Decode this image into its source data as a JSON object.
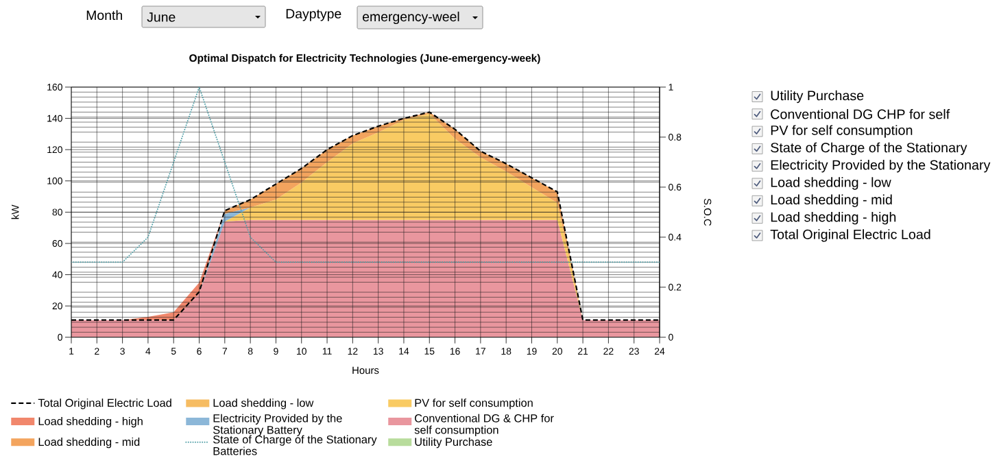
{
  "chart_data": {
    "type": "area",
    "title": "Optimal Dispatch for Electricity Technologies (June-emergency-week)",
    "xlabel": "Hours",
    "ylabel": "kW",
    "y2label": "S.O.C",
    "x": [
      1,
      2,
      3,
      4,
      5,
      6,
      7,
      8,
      9,
      10,
      11,
      12,
      13,
      14,
      15,
      16,
      17,
      18,
      19,
      20,
      21,
      22,
      23,
      24
    ],
    "xlim": [
      1,
      24
    ],
    "xticks": [
      1,
      2,
      3,
      4,
      5,
      6,
      7,
      8,
      9,
      10,
      11,
      12,
      13,
      14,
      15,
      16,
      17,
      18,
      19,
      20,
      21,
      22,
      23,
      24
    ],
    "ylim": [
      0,
      160
    ],
    "yticks": [
      0,
      20,
      40,
      60,
      80,
      100,
      120,
      140,
      160
    ],
    "y2lim": [
      0,
      1
    ],
    "y2ticks": [
      0,
      0.2,
      0.4,
      0.6,
      0.8,
      1
    ],
    "stacked": true,
    "grid": true,
    "legend": "bottom",
    "series": [
      {
        "name": "Utility Purchase",
        "color": "#b8dc9c",
        "values": [
          null,
          null,
          null,
          null,
          null,
          null,
          null,
          null,
          null,
          null,
          null,
          null,
          null,
          null,
          null,
          null,
          null,
          null,
          null,
          null,
          null,
          null,
          null,
          null
        ]
      },
      {
        "name": "Conventional DG & CHP for self consumption",
        "color": "#e9969e",
        "values": [
          11,
          11,
          11,
          11,
          11,
          28,
          74,
          75,
          75,
          75,
          75,
          75,
          75,
          75,
          75,
          75,
          75,
          75,
          75,
          75,
          11,
          11,
          11,
          11
        ]
      },
      {
        "name": "PV for self consumption",
        "color": "#f9cb63",
        "values": [
          null,
          null,
          null,
          null,
          null,
          null,
          0,
          8,
          13,
          24,
          37,
          49,
          56,
          64,
          68,
          52,
          40,
          31,
          21,
          11,
          0,
          null,
          null,
          null
        ]
      },
      {
        "name": "State of Charge of the Stationary Batteries",
        "type": "line",
        "axis": "y2",
        "line_style": "dotted",
        "color": "#4f9ea6",
        "values": [
          0.3,
          0.3,
          0.3,
          0.4,
          0.7,
          1,
          0.7,
          0.4,
          0.3,
          0.3,
          0.3,
          0.3,
          0.3,
          0.3,
          0.3,
          0.3,
          0.3,
          0.3,
          0.3,
          0.3,
          0.3,
          0.3,
          0.3,
          0.3
        ]
      },
      {
        "name": "Electricity Provided by the Stationary Battery",
        "color": "#8cb7d8",
        "values": [
          null,
          null,
          null,
          null,
          null,
          0,
          5,
          0,
          null,
          null,
          null,
          null,
          null,
          null,
          null,
          null,
          null,
          null,
          null,
          null,
          null,
          null,
          null,
          null
        ]
      },
      {
        "name": "Load shedding - low",
        "color": "#f6bc62",
        "values": [
          null,
          null,
          null,
          null,
          null,
          null,
          null,
          null,
          null,
          null,
          null,
          null,
          null,
          null,
          null,
          null,
          null,
          null,
          null,
          null,
          null,
          null,
          null,
          null
        ]
      },
      {
        "name": "Load shedding - mid",
        "color": "#f3a45e",
        "values": [
          null,
          null,
          null,
          null,
          null,
          null,
          2,
          5,
          10,
          9,
          8,
          5,
          4,
          1,
          1,
          6,
          4,
          5,
          6,
          7,
          0,
          null,
          null,
          null
        ]
      },
      {
        "name": "Load shedding - high",
        "color": "#f1876c",
        "values": [
          null,
          null,
          0,
          2,
          5,
          7,
          0,
          null,
          null,
          null,
          null,
          null,
          null,
          null,
          null,
          null,
          null,
          null,
          null,
          null,
          null,
          null,
          null,
          null
        ]
      },
      {
        "name": "Total Original Electric Load",
        "type": "line",
        "line_style": "dashed",
        "color": "#000000",
        "values": [
          11,
          11,
          11,
          11,
          11,
          29,
          81,
          88,
          98,
          108,
          120,
          129,
          135,
          140,
          144,
          133,
          119,
          111,
          102,
          93,
          11,
          11,
          11,
          11
        ]
      }
    ],
    "annotations": [
      "Month",
      "June",
      "Dayptype",
      "emergency-weel",
      "Utility Purchase",
      "Conventional DG CHP for self",
      "PV for self consumption",
      "State of Charge of the Stationary",
      "Electricity Provided by the Stationary",
      "Load shedding - low",
      "Load shedding - mid",
      "Load shedding - high",
      "Total Original Electric Load"
    ]
  }
}
